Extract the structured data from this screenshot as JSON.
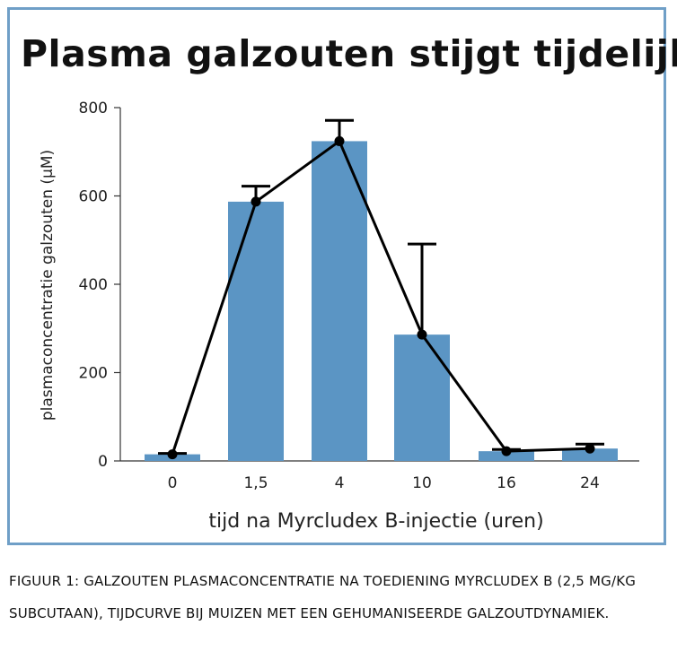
{
  "chart_data": {
    "type": "bar",
    "title": "Plasma galzouten stijgt tijdelijk",
    "xlabel": "tijd na Myrcludex B-injectie (uren)",
    "ylabel": "plasmaconcentratie galzouten (µM)",
    "ylim": [
      0,
      800
    ],
    "yticks": [
      "0",
      "200",
      "400",
      "600",
      "800"
    ],
    "categories": [
      "0",
      "1,5",
      "4",
      "10",
      "16",
      "24"
    ],
    "series": [
      {
        "values": [
          15,
          587,
          724,
          286,
          22,
          28
        ],
        "error_upper": [
          17,
          622,
          771,
          491,
          26,
          38
        ],
        "color": "#5b95c4"
      }
    ],
    "line_overlay": true,
    "grid": false,
    "legend": "none"
  },
  "caption": {
    "text": "Figuur 1: Galzouten plasmaconcentratie na toediening Myrcludex B (2,5 mg/kg subcutaan), tijdcurve bij muizen met een gehumaniseerde galzoutdynamiek."
  },
  "colors": {
    "frame": "#6f9fc7",
    "bar": "#5b95c4",
    "line": "#000000"
  }
}
